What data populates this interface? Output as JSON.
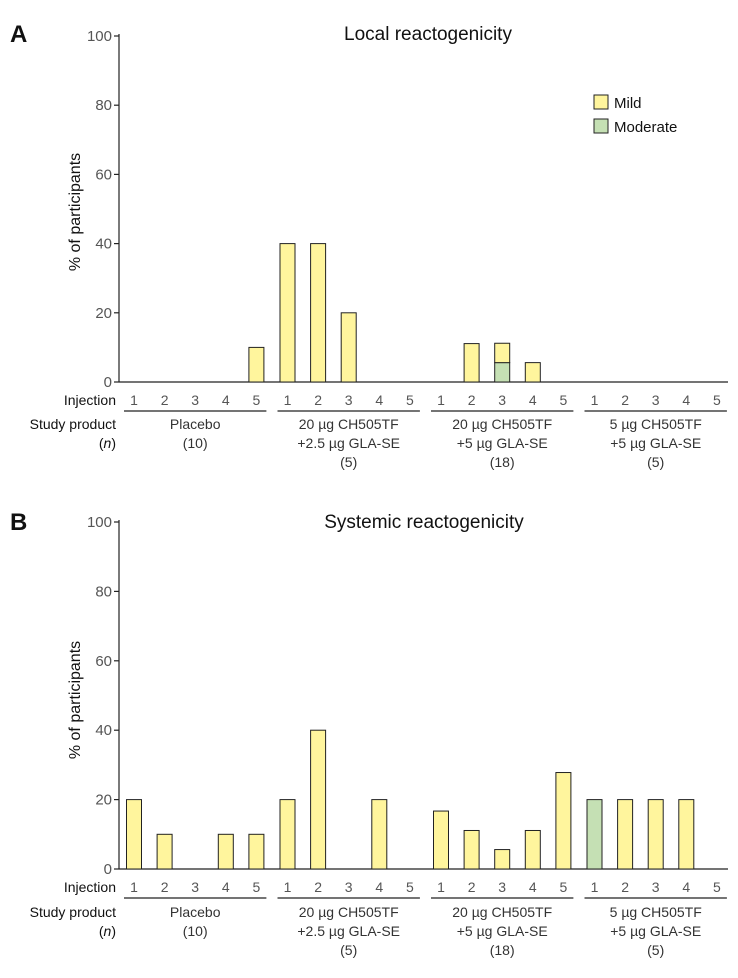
{
  "colors": {
    "mild": "#FFF59D",
    "moderate": "#C5E0B4",
    "axis": "#222222"
  },
  "legend": [
    {
      "key": "mild",
      "label": "Mild"
    },
    {
      "key": "moderate",
      "label": "Moderate"
    }
  ],
  "row_labels": {
    "injection": "Injection",
    "product": "Study product",
    "n": "(n)"
  },
  "chart_data": [
    {
      "type": "bar",
      "stacked": true,
      "panel": "A",
      "title": "Local reactogenicity",
      "ylabel": "% of participants",
      "ylim": [
        0,
        100
      ],
      "yticks": [
        0,
        20,
        40,
        60,
        80,
        100
      ],
      "injections": [
        "1",
        "2",
        "3",
        "4",
        "5"
      ],
      "groups": [
        {
          "line1": "Placebo",
          "line2": "(10)",
          "line3": "",
          "mild": [
            0,
            0,
            0,
            0,
            10
          ],
          "moderate": [
            0,
            0,
            0,
            0,
            0
          ]
        },
        {
          "line1": "20 µg CH505TF",
          "line2": "+2.5 µg GLA-SE",
          "line3": "(5)",
          "mild": [
            40,
            40,
            20,
            0,
            0
          ],
          "moderate": [
            0,
            0,
            0,
            0,
            0
          ]
        },
        {
          "line1": "20 µg CH505TF",
          "line2": "+5 µg GLA-SE",
          "line3": "(18)",
          "mild": [
            0,
            11.1,
            5.6,
            5.6,
            0
          ],
          "moderate": [
            0,
            0,
            5.6,
            0,
            0
          ]
        },
        {
          "line1": "5 µg CH505TF",
          "line2": "+5 µg GLA-SE",
          "line3": "(5)",
          "mild": [
            0,
            0,
            0,
            0,
            0
          ],
          "moderate": [
            0,
            0,
            0,
            0,
            0
          ]
        }
      ]
    },
    {
      "type": "bar",
      "stacked": true,
      "panel": "B",
      "title": "Systemic reactogenicity",
      "ylabel": "% of participants",
      "ylim": [
        0,
        100
      ],
      "yticks": [
        0,
        20,
        40,
        60,
        80,
        100
      ],
      "injections": [
        "1",
        "2",
        "3",
        "4",
        "5"
      ],
      "groups": [
        {
          "line1": "Placebo",
          "line2": "(10)",
          "line3": "",
          "mild": [
            20,
            10,
            0,
            10,
            10
          ],
          "moderate": [
            0,
            0,
            0,
            0,
            0
          ]
        },
        {
          "line1": "20 µg CH505TF",
          "line2": "+2.5 µg GLA-SE",
          "line3": "(5)",
          "mild": [
            20,
            40,
            0,
            20,
            0
          ],
          "moderate": [
            0,
            0,
            0,
            0,
            0
          ]
        },
        {
          "line1": "20 µg CH505TF",
          "line2": "+5 µg GLA-SE",
          "line3": "(18)",
          "mild": [
            16.7,
            11.1,
            5.6,
            11.1,
            27.8
          ],
          "moderate": [
            0,
            0,
            0,
            0,
            0
          ]
        },
        {
          "line1": "5 µg CH505TF",
          "line2": "+5 µg GLA-SE",
          "line3": "(5)",
          "mild": [
            0,
            20,
            20,
            20,
            0
          ],
          "moderate": [
            20,
            0,
            0,
            0,
            0
          ]
        }
      ]
    }
  ]
}
